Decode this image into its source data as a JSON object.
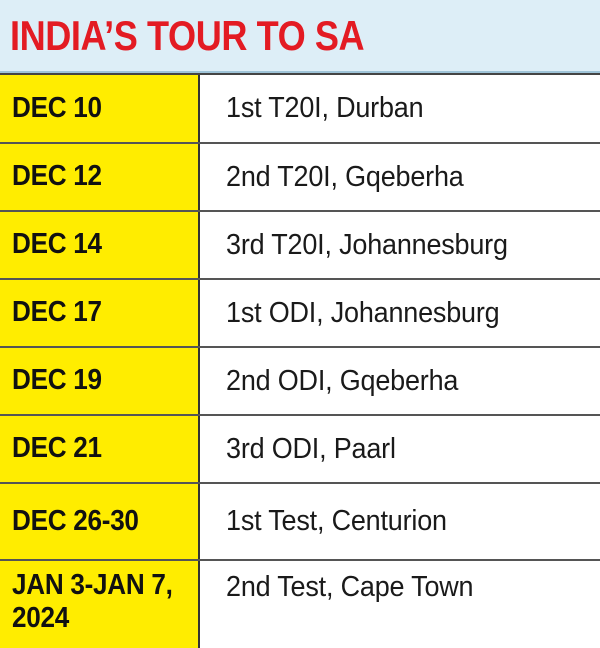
{
  "title": "INDIA’S TOUR TO SA",
  "colors": {
    "title_red": "#e31b23",
    "header_bg": "#ddeef7",
    "date_yellow": "#ffed00"
  },
  "schedule": [
    {
      "date": "DEC 10",
      "event": "1st T20I, Durban"
    },
    {
      "date": "DEC 12",
      "event": "2nd T20I, Gqeberha"
    },
    {
      "date": "DEC 14",
      "event": "3rd T20I, Johannesburg"
    },
    {
      "date": "DEC 17",
      "event": "1st ODI, Johannesburg"
    },
    {
      "date": "DEC 19",
      "event": "2nd ODI, Gqeberha"
    },
    {
      "date": "DEC 21",
      "event": "3rd ODI, Paarl"
    },
    {
      "date": "DEC 26-30",
      "event": "1st Test, Centurion"
    },
    {
      "date": "JAN 3-JAN 7, 2024",
      "event": "2nd Test, Cape Town"
    }
  ]
}
